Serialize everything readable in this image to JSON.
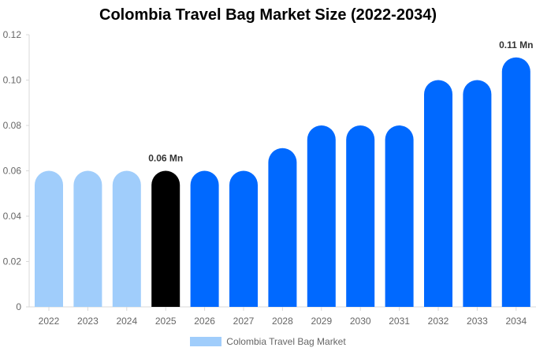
{
  "chart_data": {
    "type": "bar",
    "title": "Colombia Travel Bag Market Size (2022-2034)",
    "xlabel": "",
    "ylabel": "",
    "categories": [
      "2022",
      "2023",
      "2024",
      "2025",
      "2026",
      "2027",
      "2028",
      "2029",
      "2030",
      "2031",
      "2032",
      "2033",
      "2034"
    ],
    "series": [
      {
        "name": "Colombia Travel Bag Market",
        "values": [
          0.06,
          0.06,
          0.06,
          0.06,
          0.06,
          0.06,
          0.07,
          0.08,
          0.08,
          0.08,
          0.1,
          0.1,
          0.11
        ]
      }
    ],
    "ylim": [
      0,
      0.12
    ],
    "yticks": [
      "0",
      "0.02",
      "0.04",
      "0.06",
      "0.08",
      "0.10",
      "0.12"
    ],
    "ytick_values": [
      0,
      0.02,
      0.04,
      0.06,
      0.08,
      0.1,
      0.12
    ],
    "data_labels": [
      {
        "category": "2025",
        "text": "0.06 Mn"
      },
      {
        "category": "2034",
        "text": "0.11 Mn"
      }
    ],
    "bar_colors": {
      "historical": "#a0cdfb",
      "current": "#000000",
      "forecast": "#0069ff"
    },
    "historical_categories": [
      "2022",
      "2023",
      "2024"
    ],
    "current_category": "2025",
    "legend": {
      "label": "Colombia Travel Bag Market",
      "color": "#a0cdfb",
      "position": "bottom-center"
    },
    "grid": false
  }
}
